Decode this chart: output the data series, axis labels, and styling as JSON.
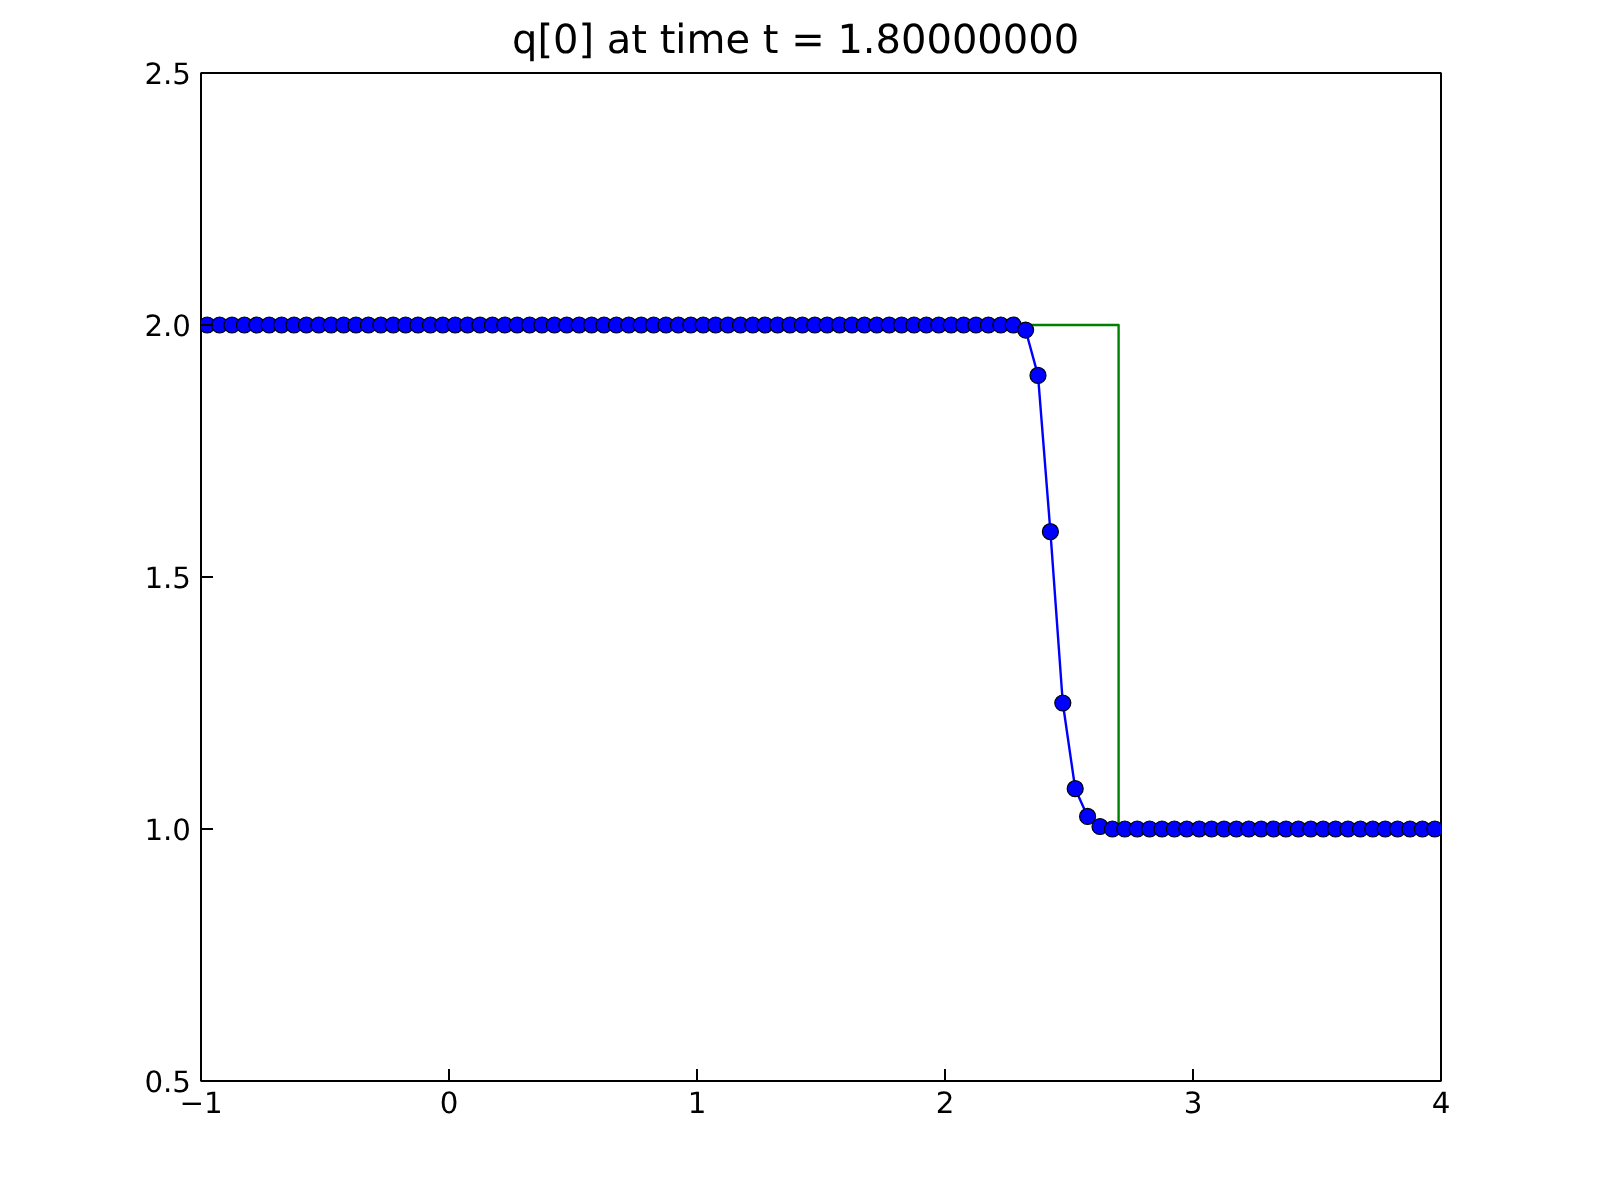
{
  "chart_data": {
    "type": "line",
    "title": "q[0] at time t =     1.80000000",
    "xlim": [
      -1,
      4
    ],
    "xticks": [
      {
        "value": -1,
        "label": "−1"
      },
      0,
      1,
      2,
      3,
      4
    ],
    "ylim": [
      0.5,
      2.5
    ],
    "yticks": [
      0.5,
      {
        "value": 1,
        "label": "1.0"
      },
      1.5,
      {
        "value": 2,
        "label": "2.0"
      },
      2.5
    ],
    "grid": false,
    "series": [
      {
        "color": "#008000",
        "marker": "none",
        "x": [
          -1,
          2.7,
          2.7,
          4
        ],
        "values": [
          2,
          2,
          1,
          1
        ]
      },
      {
        "color": "#0000ff",
        "marker": "circle",
        "x": [
          -0.975,
          -0.925,
          -0.875,
          -0.825,
          -0.775,
          -0.725,
          -0.675,
          -0.625,
          -0.575,
          -0.525,
          -0.475,
          -0.425,
          -0.375,
          -0.325,
          -0.275,
          -0.225,
          -0.175,
          -0.125,
          -0.075,
          -0.025,
          0.025,
          0.075,
          0.125,
          0.175,
          0.225,
          0.275,
          0.325,
          0.375,
          0.425,
          0.475,
          0.525,
          0.575,
          0.625,
          0.675,
          0.725,
          0.775,
          0.825,
          0.875,
          0.925,
          0.975,
          1.025,
          1.075,
          1.125,
          1.175,
          1.225,
          1.275,
          1.325,
          1.375,
          1.425,
          1.475,
          1.525,
          1.575,
          1.625,
          1.675,
          1.725,
          1.775,
          1.825,
          1.875,
          1.925,
          1.975,
          2.025,
          2.075,
          2.125,
          2.175,
          2.225,
          2.275,
          2.325,
          2.375,
          2.425,
          2.475,
          2.525,
          2.575,
          2.625,
          2.675,
          2.725,
          2.775,
          2.825,
          2.875,
          2.925,
          2.975,
          3.025,
          3.075,
          3.125,
          3.175,
          3.225,
          3.275,
          3.325,
          3.375,
          3.425,
          3.475,
          3.525,
          3.575,
          3.625,
          3.675,
          3.725,
          3.775,
          3.825,
          3.875,
          3.925,
          3.975
        ],
        "values": [
          2,
          2,
          2,
          2,
          2,
          2,
          2,
          2,
          2,
          2,
          2,
          2,
          2,
          2,
          2,
          2,
          2,
          2,
          2,
          2,
          2,
          2,
          2,
          2,
          2,
          2,
          2,
          2,
          2,
          2,
          2,
          2,
          2,
          2,
          2,
          2,
          2,
          2,
          2,
          2,
          2,
          2,
          2,
          2,
          2,
          2,
          2,
          2,
          2,
          2,
          2,
          2,
          2,
          2,
          2,
          2,
          2,
          2,
          2,
          2,
          2,
          2,
          2,
          2,
          2,
          2,
          1.99,
          1.9,
          1.59,
          1.25,
          1.08,
          1.025,
          1.005,
          1,
          1,
          1,
          1,
          1,
          1,
          1,
          1,
          1,
          1,
          1,
          1,
          1,
          1,
          1,
          1,
          1,
          1,
          1,
          1,
          1,
          1,
          1,
          1,
          1,
          1,
          1
        ]
      }
    ]
  }
}
